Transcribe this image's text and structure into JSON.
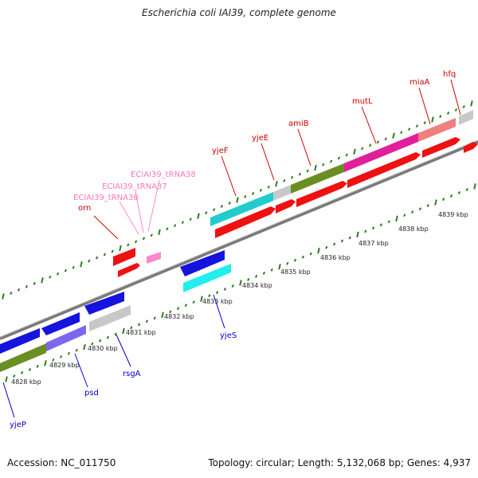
{
  "header": {
    "title": "Escherichia coli IAI39, complete genome"
  },
  "footer": {
    "accession": "Accession: NC_011750",
    "topology": "Topology: circular; Length: 5,132,068 bp; Genes: 4,937"
  },
  "colors": {
    "backbone": "#8c8c8c",
    "tick_major": "#2e7d1e",
    "tick_minor": "#2e7d1e",
    "gene_red": "#ee1111",
    "gene_blue": "#1414dd",
    "gene_cyan": "#22dddd",
    "gene_olive": "#6b8e23",
    "gene_magenta": "#e0209a",
    "gene_salmon": "#f08080",
    "gene_grey": "#c8c8c8",
    "gene_lavender": "#7b68ee",
    "trna_pink": "#ff88cc",
    "label_red": "#cc0000",
    "label_blue": "#0000cc",
    "label_pink": "#ff77bb"
  },
  "scale_labels": [
    "4828 kbp",
    "4829 kbp",
    "4830 kbp",
    "4831 kbp",
    "4832 kbp",
    "4833 kbp",
    "4834 kbp",
    "4835 kbp",
    "4836 kbp",
    "4837 kbp",
    "4838 kbp",
    "4839 kbp"
  ],
  "gene_labels": {
    "orn": "orn",
    "trna36": "ECIAI39_tRNA36",
    "trna37": "ECIAI39_tRNA37",
    "trna38": "ECIAI39_tRNA38",
    "yjeF": "yjeF",
    "yjeE": "yjeE",
    "amiB": "amiB",
    "mutL": "mutL",
    "miaA": "miaA",
    "hfq": "hfq",
    "yjeS": "yjeS",
    "rsgA": "rsgA",
    "psd": "psd",
    "yjeP": "yjeP"
  }
}
